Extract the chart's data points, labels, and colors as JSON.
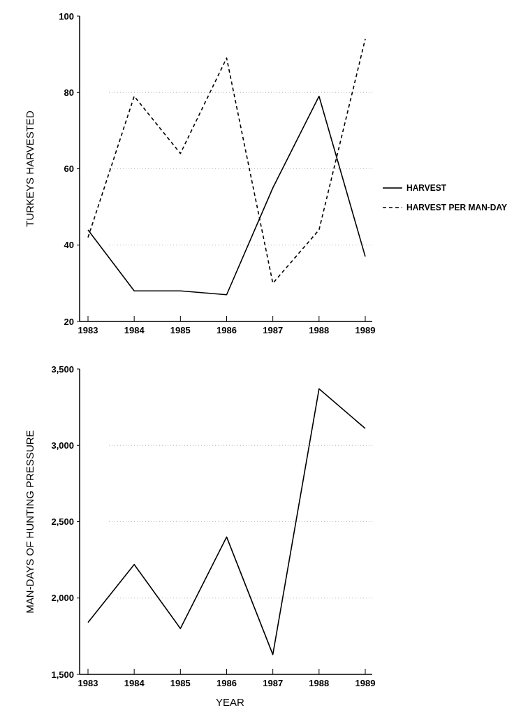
{
  "chart_data": [
    {
      "type": "line",
      "ylabel": "TURKEYS HARVESTED",
      "categories": [
        "1983",
        "1984",
        "1985",
        "1986",
        "1987",
        "1988",
        "1989"
      ],
      "series": [
        {
          "name": "HARVEST",
          "color": "#000000",
          "line_style": "solid",
          "values": [
            44,
            28,
            28,
            27,
            55,
            79,
            37
          ]
        },
        {
          "name": "HARVEST PER MAN-DAY",
          "color": "#000000",
          "line_style": "dashed",
          "values": [
            42,
            79,
            64,
            89,
            30,
            44,
            94
          ]
        }
      ],
      "ylim": [
        20,
        100
      ],
      "yticks": [
        20,
        40,
        60,
        80,
        100
      ],
      "grid": "y",
      "legend": "right",
      "marker": "none"
    },
    {
      "type": "line",
      "ylabel": "MAN-DAYS OF HUNTING PRESSURE",
      "xlabel": "YEAR",
      "categories": [
        "1983",
        "1984",
        "1985",
        "1986",
        "1987",
        "1988",
        "1989"
      ],
      "series": [
        {
          "color": "#000000",
          "line_style": "solid",
          "values": [
            1840,
            2220,
            1800,
            2400,
            1630,
            3370,
            3110
          ]
        }
      ],
      "ylim": [
        1500,
        3500
      ],
      "yticks": [
        {
          "value": 1500,
          "label": "1,500"
        },
        {
          "value": 2000,
          "label": "2,000"
        },
        {
          "value": 2500,
          "label": "2,500"
        },
        {
          "value": 3000,
          "label": "3,000"
        },
        {
          "value": 3500,
          "label": "3,500"
        }
      ],
      "grid": "y",
      "legend": false,
      "marker": "none"
    }
  ]
}
